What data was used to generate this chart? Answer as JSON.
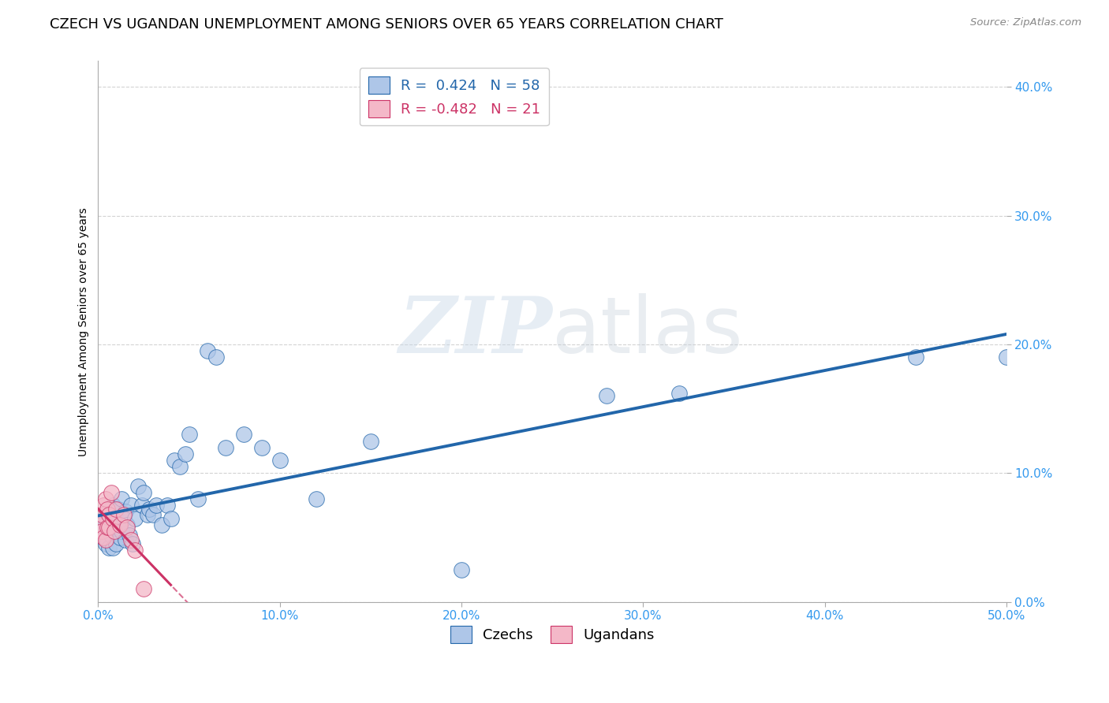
{
  "title": "CZECH VS UGANDAN UNEMPLOYMENT AMONG SENIORS OVER 65 YEARS CORRELATION CHART",
  "source": "Source: ZipAtlas.com",
  "ylabel": "Unemployment Among Seniors over 65 years",
  "xlim": [
    0.0,
    0.5
  ],
  "ylim": [
    0.0,
    0.42
  ],
  "x_ticks": [
    0.0,
    0.1,
    0.2,
    0.3,
    0.4,
    0.5
  ],
  "x_tick_labels": [
    "0.0%",
    "10.0%",
    "20.0%",
    "30.0%",
    "40.0%",
    "50.0%"
  ],
  "y_ticks": [
    0.0,
    0.1,
    0.2,
    0.3,
    0.4
  ],
  "y_tick_labels": [
    "0.0%",
    "10.0%",
    "20.0%",
    "30.0%",
    "40.0%"
  ],
  "czechs_x": [
    0.002,
    0.003,
    0.003,
    0.004,
    0.004,
    0.005,
    0.005,
    0.006,
    0.006,
    0.007,
    0.007,
    0.008,
    0.008,
    0.009,
    0.009,
    0.01,
    0.01,
    0.011,
    0.011,
    0.012,
    0.013,
    0.013,
    0.014,
    0.015,
    0.015,
    0.016,
    0.017,
    0.018,
    0.019,
    0.02,
    0.022,
    0.024,
    0.025,
    0.027,
    0.028,
    0.03,
    0.032,
    0.035,
    0.038,
    0.04,
    0.042,
    0.045,
    0.048,
    0.05,
    0.055,
    0.06,
    0.065,
    0.07,
    0.08,
    0.09,
    0.1,
    0.12,
    0.15,
    0.2,
    0.28,
    0.32,
    0.45,
    0.5
  ],
  "czechs_y": [
    0.055,
    0.05,
    0.065,
    0.045,
    0.06,
    0.07,
    0.048,
    0.058,
    0.042,
    0.068,
    0.052,
    0.075,
    0.042,
    0.062,
    0.055,
    0.065,
    0.045,
    0.058,
    0.072,
    0.05,
    0.08,
    0.055,
    0.065,
    0.07,
    0.048,
    0.06,
    0.052,
    0.075,
    0.045,
    0.065,
    0.09,
    0.075,
    0.085,
    0.068,
    0.072,
    0.068,
    0.075,
    0.06,
    0.075,
    0.065,
    0.11,
    0.105,
    0.115,
    0.13,
    0.08,
    0.195,
    0.19,
    0.12,
    0.13,
    0.12,
    0.11,
    0.08,
    0.125,
    0.025,
    0.16,
    0.162,
    0.19,
    0.19
  ],
  "ugandans_x": [
    0.001,
    0.002,
    0.002,
    0.003,
    0.003,
    0.004,
    0.004,
    0.005,
    0.005,
    0.006,
    0.006,
    0.007,
    0.008,
    0.009,
    0.01,
    0.012,
    0.014,
    0.016,
    0.018,
    0.02,
    0.025
  ],
  "ugandans_y": [
    0.06,
    0.068,
    0.055,
    0.075,
    0.05,
    0.08,
    0.048,
    0.072,
    0.058,
    0.068,
    0.058,
    0.085,
    0.065,
    0.055,
    0.072,
    0.06,
    0.068,
    0.058,
    0.048,
    0.04,
    0.01
  ],
  "czech_R": 0.424,
  "czech_N": 58,
  "ugandan_R": -0.482,
  "ugandan_N": 21,
  "czech_color": "#aec6e8",
  "ugandan_color": "#f4b8c8",
  "czech_line_color": "#2266aa",
  "ugandan_line_color": "#cc3366",
  "watermark_zip": "ZIP",
  "watermark_atlas": "atlas",
  "background_color": "#ffffff",
  "grid_color": "#c8c8c8",
  "title_fontsize": 13,
  "axis_label_fontsize": 10,
  "tick_fontsize": 11,
  "legend_fontsize": 13,
  "tick_color": "#3399ee"
}
